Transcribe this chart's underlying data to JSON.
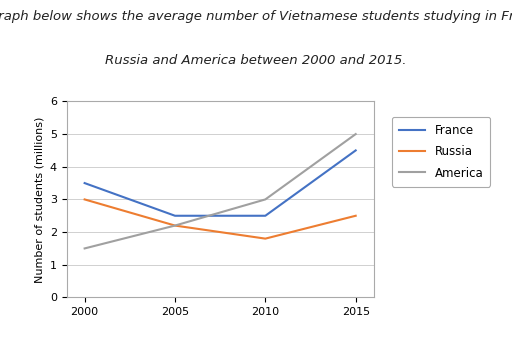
{
  "title_line1": "The graph below shows the average number of Vietnamese students studying in France,",
  "title_line2": "Russia and America between 2000 and 2015.",
  "xlabel": "",
  "ylabel": "Number of students (millions)",
  "years": [
    2000,
    2005,
    2010,
    2015
  ],
  "france": [
    3.5,
    2.5,
    2.5,
    4.5
  ],
  "russia": [
    3.0,
    2.2,
    1.8,
    2.5
  ],
  "america": [
    1.5,
    2.2,
    3.0,
    5.0
  ],
  "france_color": "#4472C4",
  "russia_color": "#ED7D31",
  "america_color": "#A0A0A0",
  "ylim": [
    0,
    6
  ],
  "yticks": [
    0,
    1,
    2,
    3,
    4,
    5,
    6
  ],
  "legend_labels": [
    "France",
    "Russia",
    "America"
  ],
  "background_color": "#ffffff",
  "title_fontsize": 9.5,
  "title_style": "italic",
  "axis_fontsize": 8,
  "legend_fontsize": 8.5
}
